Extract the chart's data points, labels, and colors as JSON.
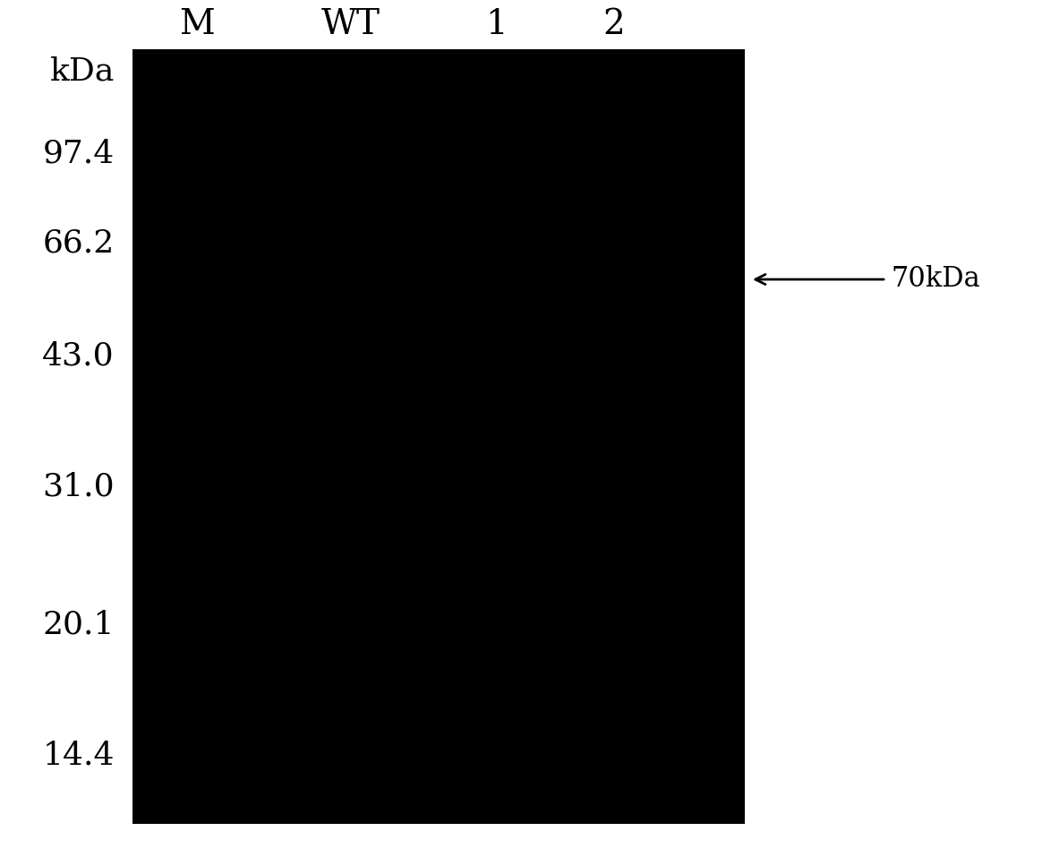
{
  "background_color": "#ffffff",
  "gel_color": "#000000",
  "col_labels": [
    "M",
    "WT",
    "1",
    "2"
  ],
  "col_label_fontsize": 28,
  "mw_labels": [
    "kDa",
    "97.4",
    "66.2",
    "43.0",
    "31.0",
    "20.1",
    "14.4"
  ],
  "mw_label_fontsize": 26,
  "arrow_label": "70kDa",
  "arrow_label_fontsize": 22
}
